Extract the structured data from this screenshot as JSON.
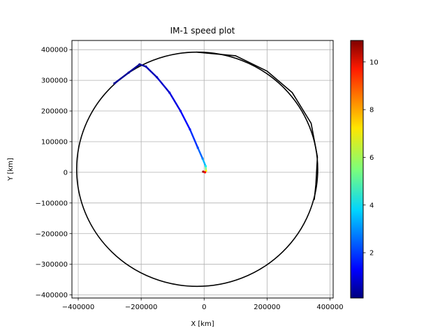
{
  "chart_data": {
    "type": "scatter",
    "title": "IM-1 speed plot",
    "xlabel": "X [km]",
    "ylabel": "Y [km]",
    "xlim": [
      -420000,
      410000
    ],
    "ylim": [
      -410000,
      430000
    ],
    "x_ticks": [
      -400000,
      -200000,
      0,
      200000,
      400000
    ],
    "x_tick_labels": [
      "−400000",
      "−200000",
      "0",
      "200000",
      "400000"
    ],
    "y_ticks": [
      -400000,
      -300000,
      -200000,
      -100000,
      0,
      100000,
      200000,
      300000,
      400000
    ],
    "y_tick_labels": [
      "−400000",
      "−300000",
      "−200000",
      "−100000",
      "0",
      "100000",
      "200000",
      "300000",
      "400000"
    ],
    "grid": true,
    "colorbar": {
      "colormap": "jet",
      "range": [
        0.1,
        10.9
      ],
      "ticks": [
        2,
        4,
        6,
        8,
        10
      ],
      "tick_labels": [
        "2",
        "4",
        "6",
        "8",
        "10"
      ]
    },
    "series": [
      {
        "kind": "line",
        "color": "#000000",
        "points": [
          [
            -25000,
            392000
          ],
          [
            100000,
            380000
          ],
          [
            200000,
            330000
          ],
          [
            280000,
            260000
          ],
          [
            340000,
            160000
          ],
          [
            360000,
            50000
          ],
          [
            355000,
            -40000
          ],
          [
            350000,
            -90000
          ]
        ],
        "ellipse": {
          "cx": -22000,
          "cy": 10000,
          "rx": 383000,
          "ry": 382000
        }
      },
      {
        "kind": "colored_path",
        "colormap_value_key": "speed",
        "points": [
          {
            "x": -285000,
            "y": 290000,
            "speed": 0.3
          },
          {
            "x": -240000,
            "y": 325000,
            "speed": 0.4
          },
          {
            "x": -205000,
            "y": 352000,
            "speed": 0.3
          },
          {
            "x": -185000,
            "y": 345000,
            "speed": 0.6
          },
          {
            "x": -150000,
            "y": 310000,
            "speed": 0.8
          },
          {
            "x": -110000,
            "y": 260000,
            "speed": 1.0
          },
          {
            "x": -75000,
            "y": 200000,
            "speed": 1.3
          },
          {
            "x": -45000,
            "y": 140000,
            "speed": 1.7
          },
          {
            "x": -20000,
            "y": 80000,
            "speed": 2.2
          },
          {
            "x": -5000,
            "y": 45000,
            "speed": 2.8
          },
          {
            "x": 5000,
            "y": 20000,
            "speed": 4.0
          },
          {
            "x": 6000,
            "y": 5000,
            "speed": 7.0
          },
          {
            "x": 3000,
            "y": 0,
            "speed": 9.5
          },
          {
            "x": -3000,
            "y": 2000,
            "speed": 10.5
          }
        ]
      }
    ]
  }
}
